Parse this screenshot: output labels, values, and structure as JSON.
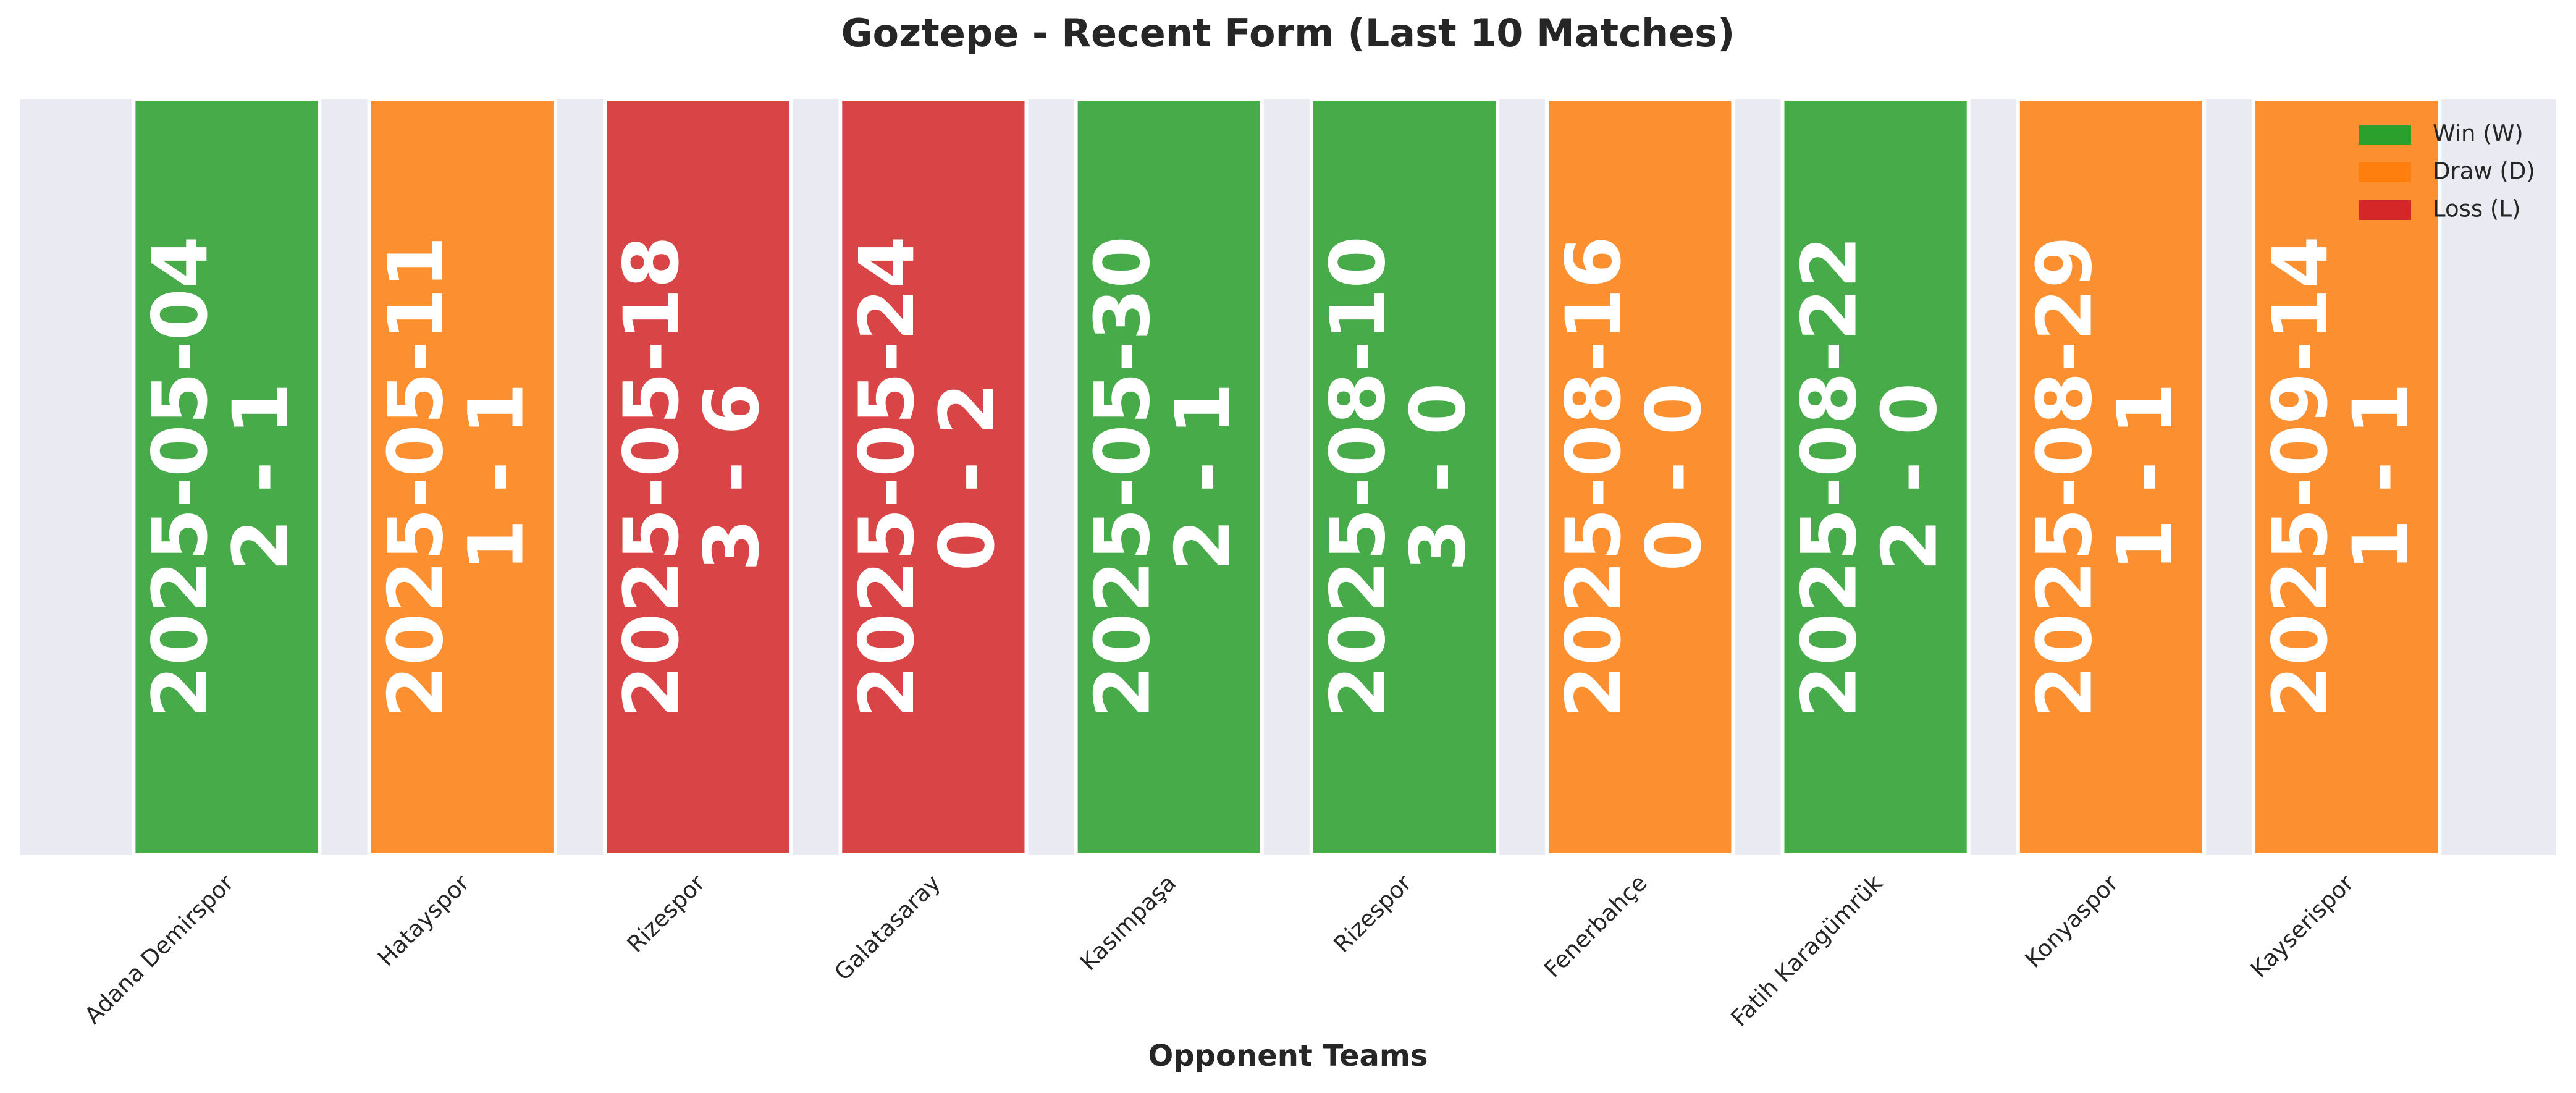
{
  "chart_data": {
    "type": "bar",
    "title": "Goztepe - Recent Form (Last 10 Matches)",
    "x_label": "Opponent Teams",
    "categories": [
      "Adana Demirspor",
      "Hatayspor",
      "Rizespor",
      "Galatasaray",
      "Kasımpaşa",
      "Rizespor",
      "Fenerbahçe",
      "Fatih Karagümrük",
      "Konyaspor",
      "Kayserispor"
    ],
    "values": [
      1,
      1,
      1,
      1,
      1,
      1,
      1,
      1,
      1,
      1
    ],
    "dates": [
      "2025-05-04",
      "2025-05-11",
      "2025-05-18",
      "2025-05-24",
      "2025-05-30",
      "2025-08-10",
      "2025-08-16",
      "2025-08-22",
      "2025-08-29",
      "2025-09-14"
    ],
    "scores": [
      "2 - 1",
      "1 - 1",
      "3 - 6",
      "0 - 2",
      "2 - 1",
      "3 - 0",
      "0 - 0",
      "2 - 0",
      "1 - 1",
      "1 - 1"
    ],
    "colors": [
      "#2ca02c",
      "#ff7f0e",
      "#d62728",
      "#d62728",
      "#2ca02c",
      "#2ca02c",
      "#ff7f0e",
      "#2ca02c",
      "#ff7f0e",
      "#ff7f0e"
    ],
    "ylim": [
      0,
      1
    ],
    "legend": [
      {
        "label": "Win (W)",
        "color": "#2ca02c"
      },
      {
        "label": "Draw (D)",
        "color": "#ff7f0e"
      },
      {
        "label": "Loss (L)",
        "color": "#d62728"
      }
    ],
    "legend_position": "upper right"
  }
}
